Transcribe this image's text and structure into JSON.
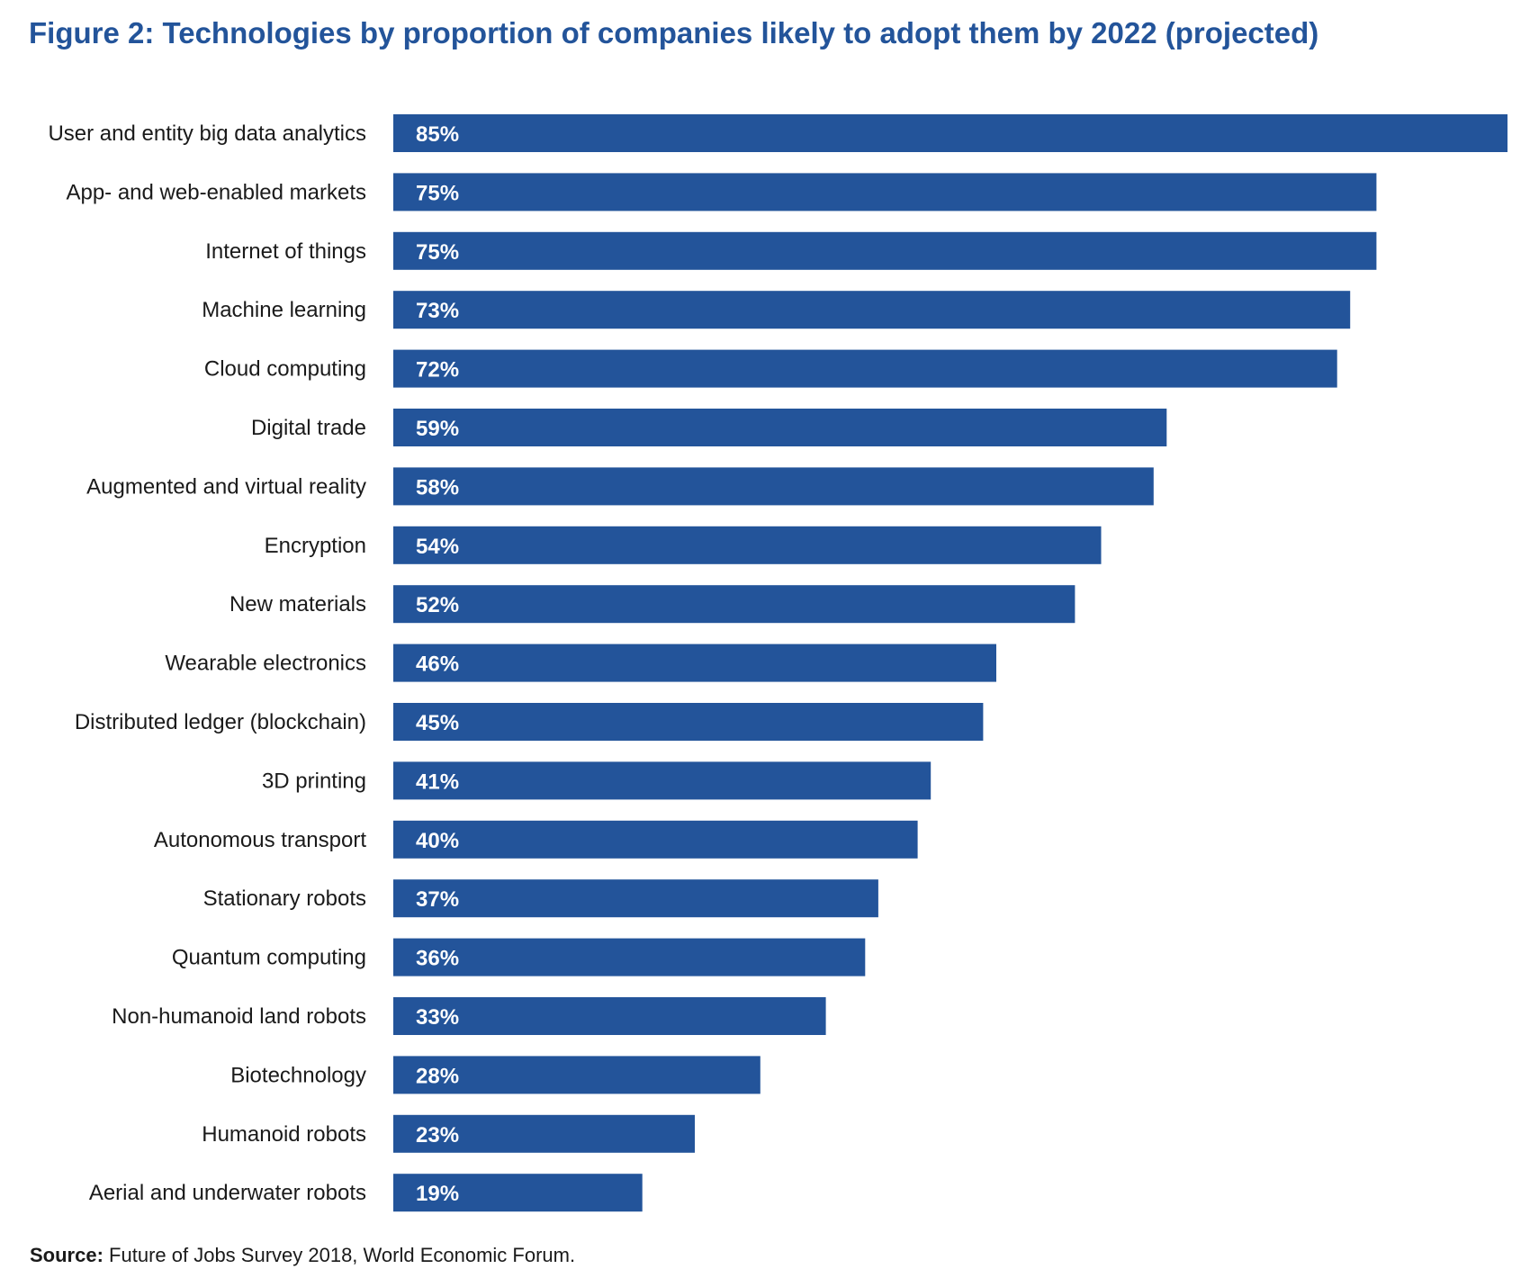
{
  "title": "Figure 2: Technologies by proportion of companies likely to adopt them by 2022 (projected)",
  "source": {
    "label": "Source:",
    "text": "Future of Jobs Survey 2018, World Economic Forum."
  },
  "colors": {
    "bar": "#23549a",
    "title": "#23549a",
    "category_label": "#1a1a1a",
    "value_label": "#ffffff"
  },
  "chart_data": {
    "type": "bar",
    "orientation": "horizontal",
    "categories": [
      "User and entity big data analytics",
      "App- and web-enabled markets",
      "Internet of things",
      "Machine learning",
      "Cloud computing",
      "Digital trade",
      "Augmented and virtual reality",
      "Encryption",
      "New materials",
      "Wearable electronics",
      "Distributed ledger (blockchain)",
      "3D printing",
      "Autonomous transport",
      "Stationary robots",
      "Quantum computing",
      "Non-humanoid land robots",
      "Biotechnology",
      "Humanoid robots",
      "Aerial and underwater robots"
    ],
    "values": [
      85,
      75,
      75,
      73,
      72,
      59,
      58,
      54,
      52,
      46,
      45,
      41,
      40,
      37,
      36,
      33,
      28,
      23,
      19
    ],
    "value_labels": [
      "85%",
      "75%",
      "75%",
      "73%",
      "72%",
      "59%",
      "58%",
      "54%",
      "52%",
      "46%",
      "45%",
      "41%",
      "40%",
      "37%",
      "36%",
      "33%",
      "28%",
      "23%",
      "19%"
    ],
    "unit": "%",
    "xlim": [
      0,
      85
    ],
    "grid": false,
    "legend": false,
    "title": "Figure 2: Technologies by proportion of companies likely to adopt them by 2022 (projected)",
    "xlabel": "",
    "ylabel": ""
  }
}
